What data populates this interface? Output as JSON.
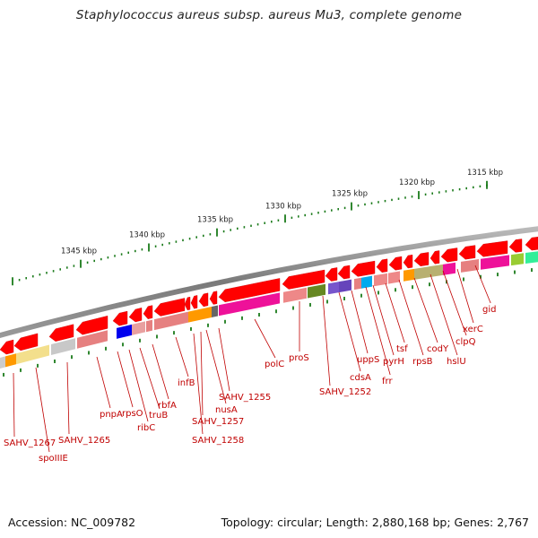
{
  "title": "Staphylococcus aureus subsp. aureus Mu3, complete genome",
  "footer": {
    "accession": "Accession: NC_009782",
    "topology": "Topology: circular; Length: 2,880,168 bp; Genes: 2,767"
  },
  "scale": {
    "unit": "kbp",
    "ticks": [
      {
        "kbp": 1315,
        "label": "1315 kbp"
      },
      {
        "kbp": 1320,
        "label": "1320 kbp"
      },
      {
        "kbp": 1325,
        "label": "1325 kbp"
      },
      {
        "kbp": 1330,
        "label": "1330 kbp"
      },
      {
        "kbp": 1335,
        "label": "1335 kbp"
      },
      {
        "kbp": 1340,
        "label": "1340 kbp"
      },
      {
        "kbp": 1345,
        "label": "1345 kbp"
      }
    ]
  },
  "colors": {
    "gene": "#ff0000",
    "backbone": "#8a8a8a",
    "tick": "#1a7a1a",
    "label": "#c00000"
  },
  "genes": [
    {
      "name": "gid"
    },
    {
      "name": "xerC"
    },
    {
      "name": "clpQ"
    },
    {
      "name": "hslU"
    },
    {
      "name": "codY"
    },
    {
      "name": "rpsB"
    },
    {
      "name": "tsf"
    },
    {
      "name": "pyrH"
    },
    {
      "name": "frr"
    },
    {
      "name": "uppS"
    },
    {
      "name": "cdsA"
    },
    {
      "name": "SAHV_1252"
    },
    {
      "name": "proS"
    },
    {
      "name": "polC"
    },
    {
      "name": "SAHV_1255"
    },
    {
      "name": "nusA"
    },
    {
      "name": "SAHV_1257"
    },
    {
      "name": "SAHV_1258"
    },
    {
      "name": "infB"
    },
    {
      "name": "rbfA"
    },
    {
      "name": "truB"
    },
    {
      "name": "ribC"
    },
    {
      "name": "rpsO"
    },
    {
      "name": "pnpA"
    },
    {
      "name": "SAHV_1265"
    },
    {
      "name": "spoIIIE"
    },
    {
      "name": "SAHV_1267"
    }
  ]
}
